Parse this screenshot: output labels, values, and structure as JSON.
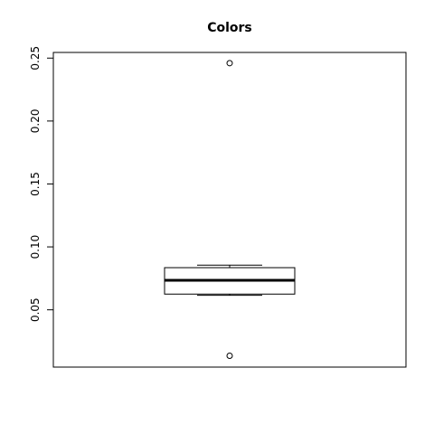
{
  "chart_data": {
    "type": "boxplot",
    "title": "Colors",
    "xlabel": "",
    "ylabel": "",
    "ylim": [
      0.0045,
      0.2545
    ],
    "yticks": [
      0.05,
      0.1,
      0.15,
      0.2,
      0.25
    ],
    "ytick_labels": [
      "0.05",
      "0.10",
      "0.15",
      "0.20",
      "0.25"
    ],
    "grid": false,
    "box": {
      "whisker_low": 0.0615,
      "q1": 0.0625,
      "median": 0.0735,
      "q3": 0.0835,
      "whisker_high": 0.0855,
      "outliers": [
        0.246,
        0.0135
      ]
    }
  }
}
